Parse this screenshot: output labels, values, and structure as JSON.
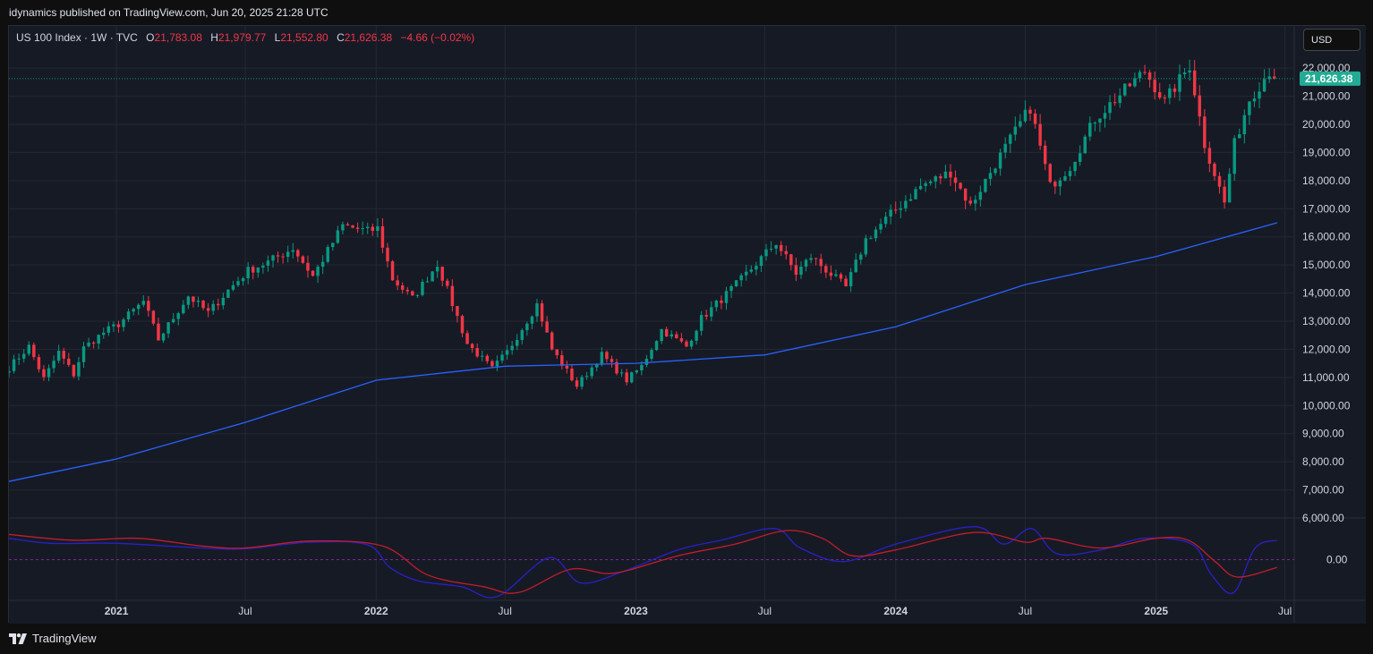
{
  "header": {
    "published": "idynamics published on TradingView.com, Jun 20, 2025 21:28 UTC"
  },
  "legend": {
    "symbol": "US 100 Index · 1W · TVC",
    "open_label": "O",
    "open": "21,783.08",
    "high_label": "H",
    "high": "21,979.77",
    "low_label": "L",
    "low": "21,552.80",
    "close_label": "C",
    "close": "21,626.38",
    "change": "−4.66 (−0.02%)"
  },
  "currency_button": {
    "label": "USD"
  },
  "footer": {
    "brand": "TradingView"
  },
  "colors": {
    "background": "#161a25",
    "grid": "#242833",
    "up_candle": "#089981",
    "down_candle": "#f23645",
    "ma_line": "#2962ff",
    "osc_fast": "#2a20c8",
    "osc_slow": "#c21d2a",
    "last_price_badge": "#089981"
  },
  "chart_data": [
    {
      "type": "candlestick",
      "title": "US 100 Index · 1W · TVC",
      "price_axis": {
        "ticks": [
          6000,
          7000,
          8000,
          9000,
          10000,
          11000,
          12000,
          13000,
          14000,
          15000,
          16000,
          17000,
          18000,
          19000,
          20000,
          21000,
          22000
        ],
        "tick_labels": [
          "6,000.00",
          "7,000.00",
          "8,000.00",
          "9,000.00",
          "10,000.00",
          "11,000.00",
          "12,000.00",
          "13,000.00",
          "14,000.00",
          "15,000.00",
          "16,000.00",
          "17,000.00",
          "18,000.00",
          "19,000.00",
          "20,000.00",
          "21,000.00",
          "22,000.00"
        ],
        "range": [
          6000,
          23500
        ],
        "last_price": 21626.38,
        "last_price_label": "21,626.38"
      },
      "time_axis": {
        "labels": [
          "2021",
          "Jul",
          "2022",
          "Jul",
          "2023",
          "Jul",
          "2024",
          "Jul",
          "2025",
          "Jul"
        ],
        "label_dates": [
          "2021-01-01",
          "2021-07-01",
          "2022-01-01",
          "2022-07-01",
          "2023-01-01",
          "2023-07-01",
          "2024-01-01",
          "2024-07-01",
          "2025-01-01",
          "2025-07-01"
        ],
        "bold": [
          true,
          false,
          true,
          false,
          true,
          false,
          true,
          false,
          true,
          false
        ],
        "range": [
          "2020-08-03",
          "2025-07-14"
        ]
      },
      "close_path": [
        [
          "2020-08-03",
          11350
        ],
        [
          "2020-08-31",
          12100
        ],
        [
          "2020-09-21",
          10950
        ],
        [
          "2020-10-12",
          11900
        ],
        [
          "2020-11-02",
          11100
        ],
        [
          "2020-11-16",
          12050
        ],
        [
          "2020-12-14",
          12600
        ],
        [
          "2021-01-04",
          12900
        ],
        [
          "2021-02-08",
          13700
        ],
        [
          "2021-03-01",
          12350
        ],
        [
          "2021-04-12",
          13900
        ],
        [
          "2021-05-10",
          13300
        ],
        [
          "2021-06-07",
          14100
        ],
        [
          "2021-07-05",
          14800
        ],
        [
          "2021-08-02",
          15100
        ],
        [
          "2021-09-06",
          15600
        ],
        [
          "2021-10-04",
          14600
        ],
        [
          "2021-11-15",
          16400
        ],
        [
          "2021-12-20",
          16200
        ],
        [
          "2022-01-03",
          16300
        ],
        [
          "2022-01-24",
          14500
        ],
        [
          "2022-02-21",
          13800
        ],
        [
          "2022-03-28",
          15050
        ],
        [
          "2022-05-09",
          12200
        ],
        [
          "2022-06-13",
          11300
        ],
        [
          "2022-07-04",
          11900
        ],
        [
          "2022-08-15",
          13600
        ],
        [
          "2022-09-05",
          12000
        ],
        [
          "2022-10-10",
          10700
        ],
        [
          "2022-11-14",
          11800
        ],
        [
          "2022-12-19",
          10900
        ],
        [
          "2023-01-09",
          11400
        ],
        [
          "2023-02-06",
          12700
        ],
        [
          "2023-03-13",
          12100
        ],
        [
          "2023-04-03",
          13100
        ],
        [
          "2023-05-22",
          14300
        ],
        [
          "2023-07-17",
          15800
        ],
        [
          "2023-08-14",
          14700
        ],
        [
          "2023-09-04",
          15300
        ],
        [
          "2023-10-23",
          14200
        ],
        [
          "2023-11-20",
          15900
        ],
        [
          "2023-12-25",
          16800
        ],
        [
          "2024-02-05",
          17800
        ],
        [
          "2024-03-18",
          18300
        ],
        [
          "2024-04-15",
          17100
        ],
        [
          "2024-05-20",
          18600
        ],
        [
          "2024-07-08",
          20600
        ],
        [
          "2024-08-05",
          17800
        ],
        [
          "2024-09-02",
          18500
        ],
        [
          "2024-10-07",
          20200
        ],
        [
          "2024-12-16",
          21900
        ],
        [
          "2025-01-13",
          20800
        ],
        [
          "2025-02-17",
          22100
        ],
        [
          "2025-03-10",
          19300
        ],
        [
          "2025-04-07",
          17200
        ],
        [
          "2025-04-21",
          19300
        ],
        [
          "2025-05-12",
          20900
        ],
        [
          "2025-06-09",
          21900
        ],
        [
          "2025-06-20",
          21626.38
        ]
      ],
      "moving_average": [
        [
          "2020-08-03",
          7300
        ],
        [
          "2021-01-01",
          8100
        ],
        [
          "2021-07-01",
          9400
        ],
        [
          "2022-01-01",
          10900
        ],
        [
          "2022-07-01",
          11400
        ],
        [
          "2023-01-01",
          11500
        ],
        [
          "2023-07-01",
          11800
        ],
        [
          "2024-01-01",
          12800
        ],
        [
          "2024-07-01",
          14300
        ],
        [
          "2025-01-01",
          15300
        ],
        [
          "2025-06-20",
          16500
        ]
      ]
    },
    {
      "type": "line",
      "title": "",
      "y_ticks": [
        0
      ],
      "y_tick_labels": [
        "0.00"
      ],
      "zero_line": true,
      "series": [
        {
          "values": [
            [
              "2020-08-03",
              0.55
            ],
            [
              "2020-10-01",
              0.42
            ],
            [
              "2021-01-01",
              0.42
            ],
            [
              "2021-05-01",
              0.3
            ],
            [
              "2021-07-01",
              0.28
            ],
            [
              "2021-10-01",
              0.45
            ],
            [
              "2021-12-20",
              0.38
            ],
            [
              "2022-01-20",
              -0.2
            ],
            [
              "2022-03-01",
              -0.55
            ],
            [
              "2022-05-01",
              -0.7
            ],
            [
              "2022-06-20",
              -0.95
            ],
            [
              "2022-09-01",
              0.05
            ],
            [
              "2022-10-15",
              -0.6
            ],
            [
              "2022-12-15",
              -0.3
            ],
            [
              "2023-03-01",
              0.25
            ],
            [
              "2023-05-01",
              0.5
            ],
            [
              "2023-07-15",
              0.8
            ],
            [
              "2023-08-20",
              0.3
            ],
            [
              "2023-10-20",
              -0.05
            ],
            [
              "2024-01-01",
              0.4
            ],
            [
              "2024-04-20",
              0.85
            ],
            [
              "2024-06-01",
              0.4
            ],
            [
              "2024-07-10",
              0.8
            ],
            [
              "2024-08-15",
              0.15
            ],
            [
              "2024-10-15",
              0.25
            ],
            [
              "2024-12-15",
              0.55
            ],
            [
              "2025-02-20",
              0.4
            ],
            [
              "2025-03-20",
              -0.4
            ],
            [
              "2025-04-20",
              -0.85
            ],
            [
              "2025-05-20",
              0.3
            ],
            [
              "2025-06-20",
              0.5
            ]
          ]
        },
        {
          "values": [
            [
              "2020-08-03",
              0.65
            ],
            [
              "2020-11-01",
              0.5
            ],
            [
              "2021-02-01",
              0.55
            ],
            [
              "2021-05-01",
              0.35
            ],
            [
              "2021-07-01",
              0.3
            ],
            [
              "2021-10-01",
              0.48
            ],
            [
              "2022-01-10",
              0.35
            ],
            [
              "2022-03-15",
              -0.4
            ],
            [
              "2022-06-01",
              -0.7
            ],
            [
              "2022-07-20",
              -0.85
            ],
            [
              "2022-10-01",
              -0.25
            ],
            [
              "2022-12-01",
              -0.35
            ],
            [
              "2023-03-01",
              0.1
            ],
            [
              "2023-05-20",
              0.4
            ],
            [
              "2023-08-01",
              0.75
            ],
            [
              "2023-09-20",
              0.55
            ],
            [
              "2023-11-01",
              0.1
            ],
            [
              "2024-01-01",
              0.25
            ],
            [
              "2024-04-20",
              0.7
            ],
            [
              "2024-07-01",
              0.45
            ],
            [
              "2024-08-01",
              0.55
            ],
            [
              "2024-10-15",
              0.3
            ],
            [
              "2025-01-01",
              0.55
            ],
            [
              "2025-02-15",
              0.5
            ],
            [
              "2025-03-25",
              -0.05
            ],
            [
              "2025-04-25",
              -0.45
            ],
            [
              "2025-06-20",
              -0.2
            ]
          ]
        }
      ]
    }
  ]
}
